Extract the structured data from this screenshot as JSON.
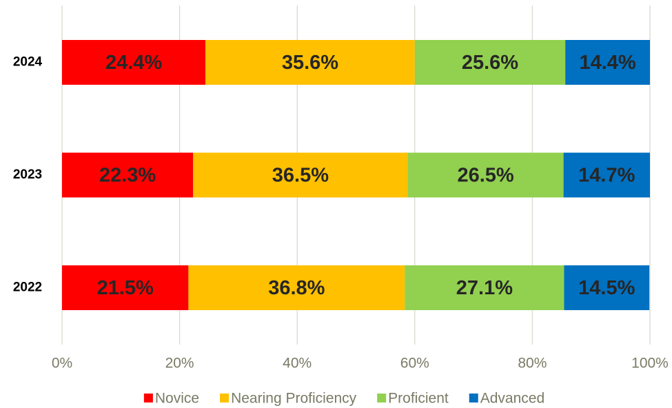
{
  "chart_data": {
    "type": "stacked-bar-horizontal",
    "categories": [
      "2024",
      "2023",
      "2022"
    ],
    "series": [
      {
        "name": "Novice",
        "color": "#ff0000",
        "values": [
          24.4,
          22.3,
          21.5
        ],
        "value_labels": [
          "24.4%",
          "22.3%",
          "21.5%"
        ]
      },
      {
        "name": "Nearing Proficiency",
        "color": "#ffc000",
        "values": [
          35.6,
          36.5,
          36.8
        ],
        "value_labels": [
          "35.6%",
          "36.5%",
          "36.8%"
        ]
      },
      {
        "name": "Proficient",
        "color": "#92d050",
        "values": [
          25.6,
          26.5,
          27.1
        ],
        "value_labels": [
          "25.6%",
          "26.5%",
          "27.1%"
        ]
      },
      {
        "name": "Advanced",
        "color": "#0070c0",
        "values": [
          14.4,
          14.7,
          14.5
        ],
        "value_labels": [
          "14.4%",
          "14.7%",
          "14.5%"
        ]
      }
    ],
    "xlim": [
      0,
      100
    ],
    "xticks": [
      {
        "value": 0,
        "label": "0%"
      },
      {
        "value": 20,
        "label": "20%"
      },
      {
        "value": 40,
        "label": "40%"
      },
      {
        "value": 60,
        "label": "60%"
      },
      {
        "value": 80,
        "label": "80%"
      },
      {
        "value": 100,
        "label": "100%"
      }
    ],
    "grid": true,
    "legend": "bottom"
  }
}
